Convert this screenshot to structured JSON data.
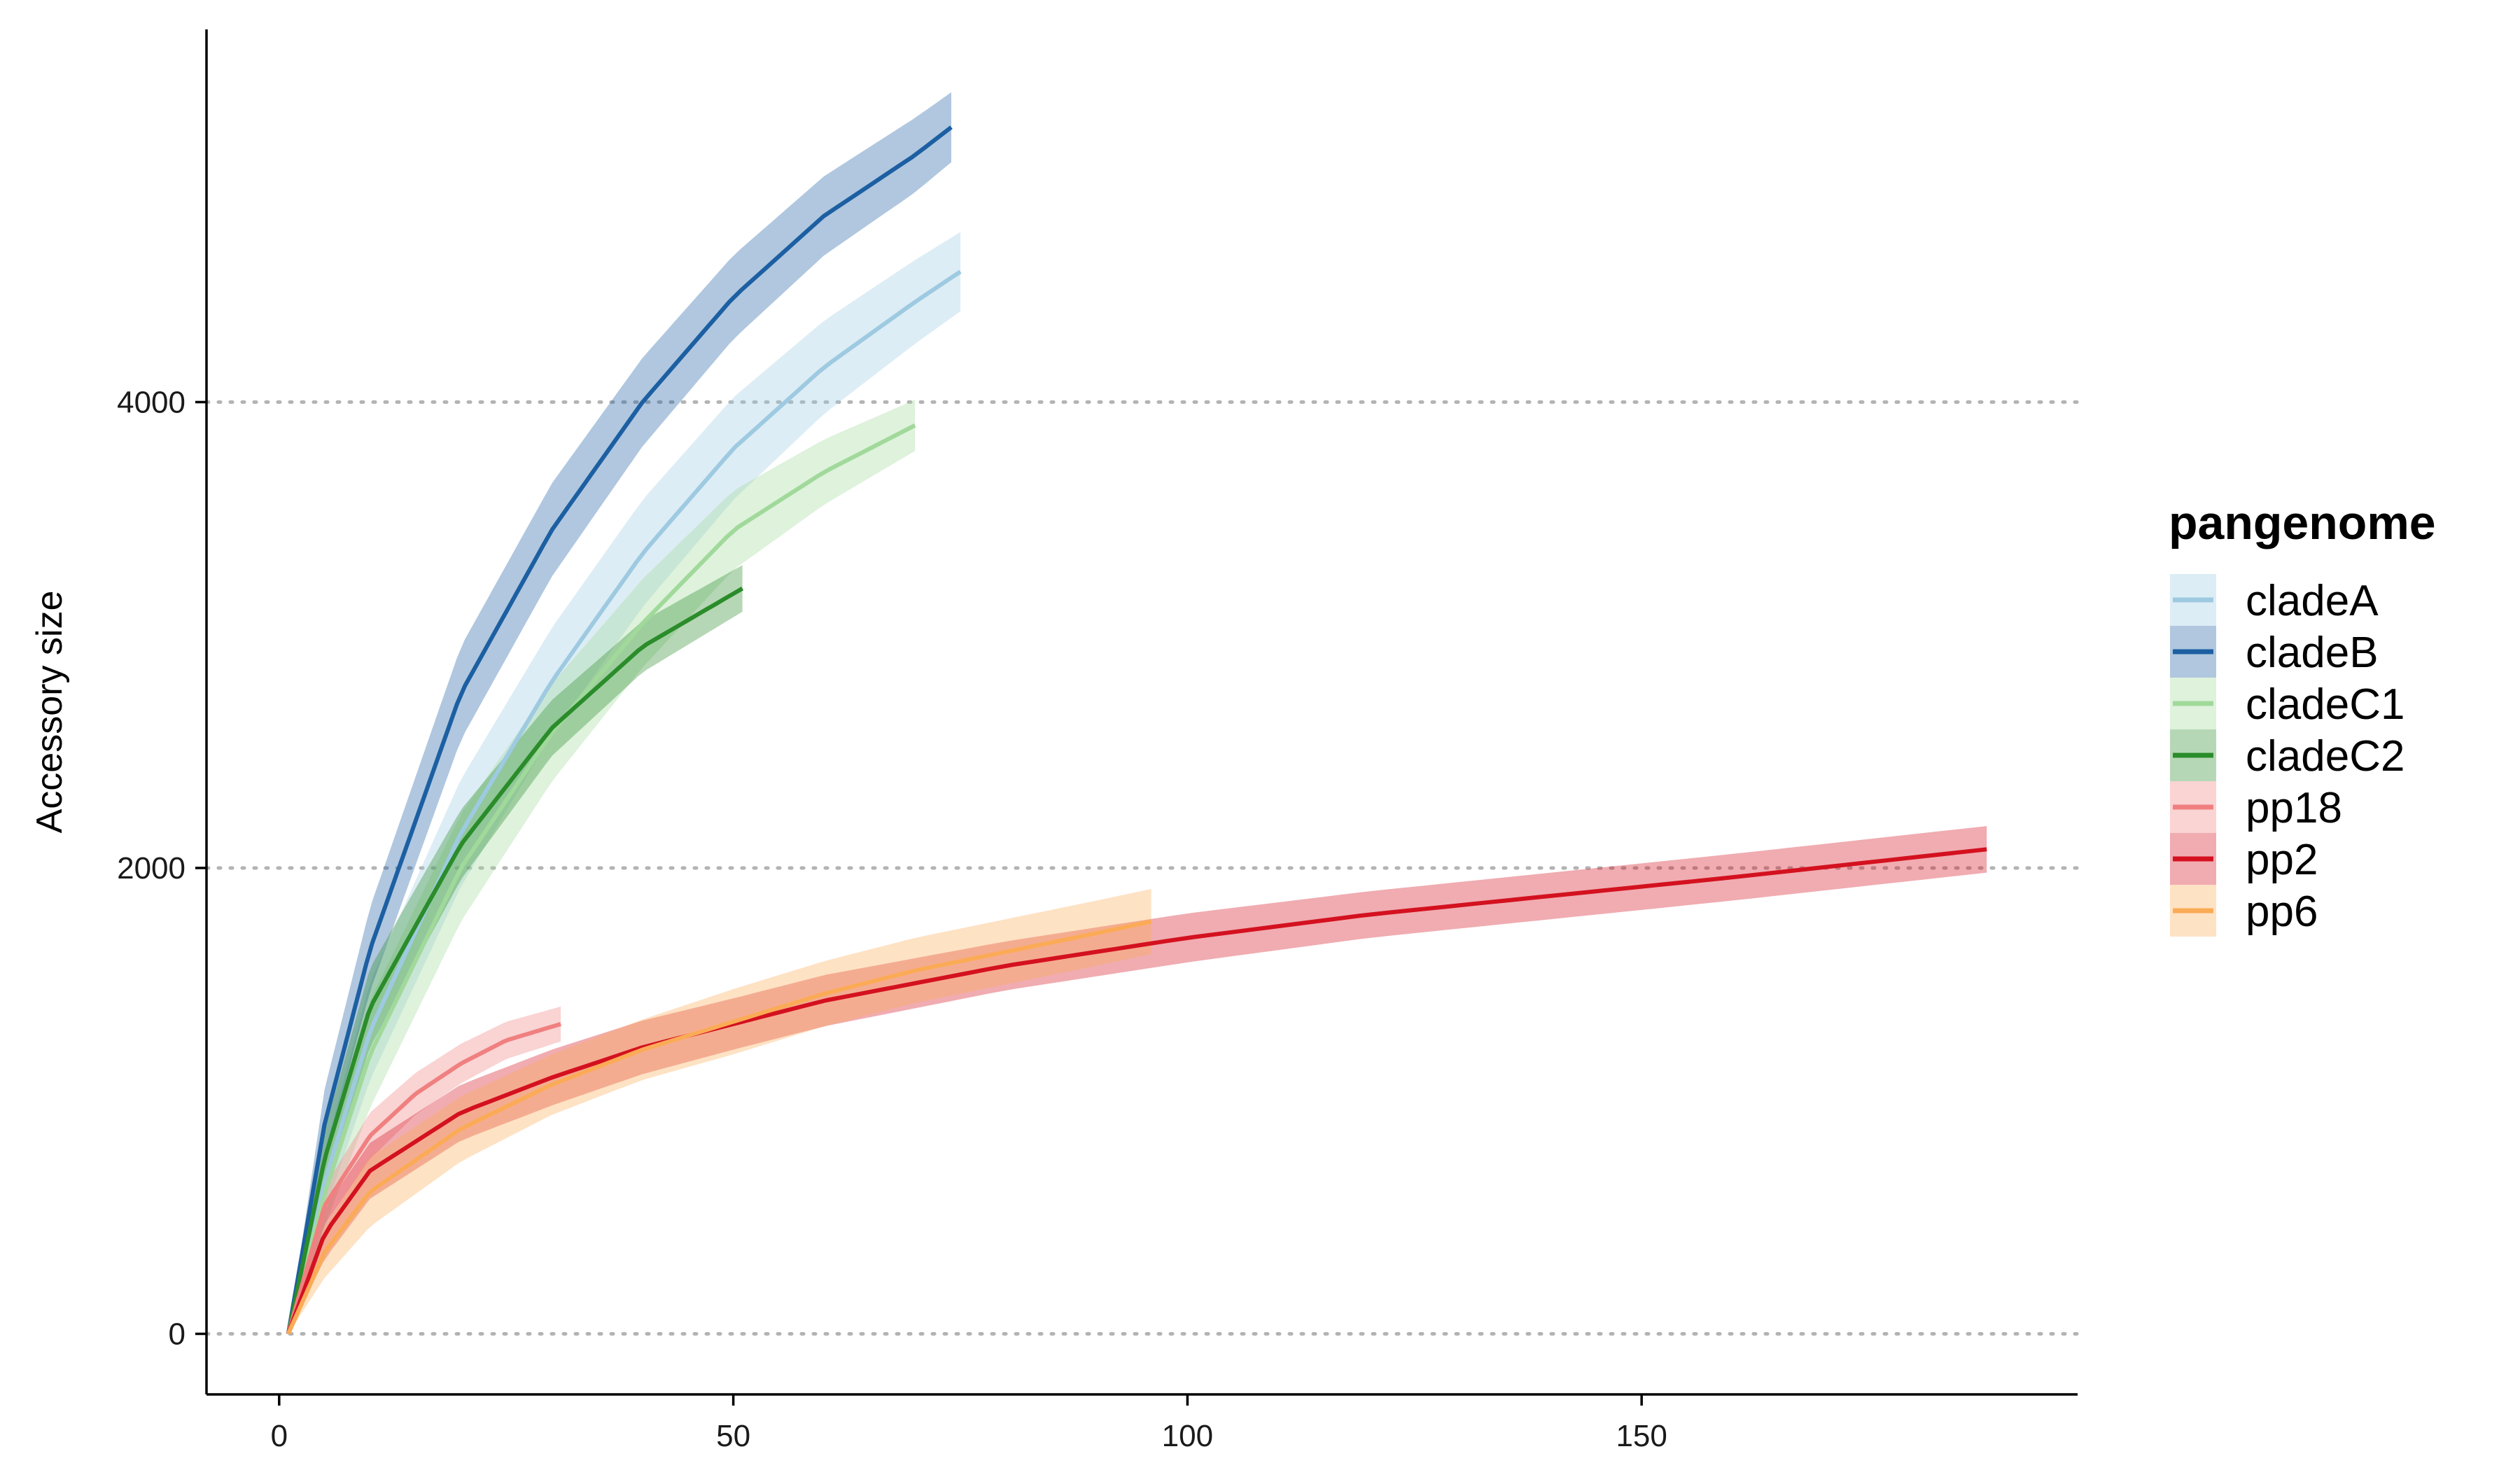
{
  "chart_data": {
    "type": "line",
    "title": "",
    "xlabel": "",
    "ylabel": "Accessory size",
    "xlim": [
      -8,
      198
    ],
    "ylim": [
      -260,
      5600
    ],
    "x_ticks": [
      0,
      50,
      100,
      150
    ],
    "y_ticks": [
      0,
      2000,
      4000
    ],
    "grid": "horizontal dotted at y ticks",
    "legend": {
      "title": "pangenome",
      "position": "right"
    },
    "series": [
      {
        "name": "cladeA",
        "color": "#9ecae1",
        "x": [
          1,
          5,
          10,
          20,
          30,
          40,
          50,
          60,
          70,
          75
        ],
        "y": [
          0,
          650,
          1300,
          2150,
          2800,
          3350,
          3800,
          4150,
          4430,
          4560
        ],
        "band": [
          0,
          130,
          210,
          230,
          230,
          230,
          220,
          200,
          180,
          170
        ]
      },
      {
        "name": "cladeB",
        "color": "#1c5fa2",
        "x": [
          1,
          5,
          10,
          20,
          30,
          40,
          50,
          60,
          70,
          74
        ],
        "y": [
          0,
          900,
          1650,
          2750,
          3450,
          4000,
          4450,
          4800,
          5060,
          5180
        ],
        "band": [
          0,
          150,
          180,
          200,
          200,
          190,
          180,
          170,
          160,
          150
        ]
      },
      {
        "name": "cladeC1",
        "color": "#a1d99b",
        "x": [
          1,
          5,
          10,
          20,
          30,
          40,
          50,
          60,
          70
        ],
        "y": [
          0,
          600,
          1200,
          2000,
          2580,
          3050,
          3450,
          3700,
          3900
        ],
        "band": [
          0,
          140,
          230,
          230,
          210,
          190,
          170,
          140,
          110
        ]
      },
      {
        "name": "cladeC2",
        "color": "#2a8c2a",
        "x": [
          1,
          5,
          10,
          20,
          30,
          40,
          51
        ],
        "y": [
          0,
          750,
          1400,
          2100,
          2600,
          2950,
          3200
        ],
        "band": [
          0,
          120,
          170,
          150,
          120,
          110,
          100
        ]
      },
      {
        "name": "pp18",
        "color": "#f08080",
        "x": [
          1,
          5,
          10,
          15,
          20,
          25,
          31
        ],
        "y": [
          0,
          550,
          850,
          1030,
          1160,
          1260,
          1330
        ],
        "band": [
          0,
          80,
          100,
          90,
          85,
          80,
          75
        ]
      },
      {
        "name": "pp2",
        "color": "#d4111f",
        "x": [
          1,
          5,
          10,
          20,
          30,
          40,
          50,
          60,
          80,
          100,
          120,
          140,
          160,
          188
        ],
        "y": [
          0,
          430,
          700,
          950,
          1100,
          1230,
          1330,
          1430,
          1580,
          1700,
          1800,
          1880,
          1960,
          2080
        ],
        "band": [
          0,
          110,
          120,
          120,
          120,
          115,
          110,
          110,
          105,
          105,
          100,
          100,
          100,
          100
        ]
      },
      {
        "name": "pp6",
        "color": "#fbab56",
        "x": [
          1,
          5,
          10,
          20,
          30,
          40,
          50,
          60,
          70,
          80,
          90,
          96
        ],
        "y": [
          0,
          350,
          610,
          880,
          1070,
          1220,
          1340,
          1460,
          1560,
          1640,
          1720,
          1770
        ],
        "band": [
          0,
          110,
          150,
          140,
          130,
          130,
          140,
          140,
          140,
          140,
          140,
          140
        ]
      }
    ]
  }
}
